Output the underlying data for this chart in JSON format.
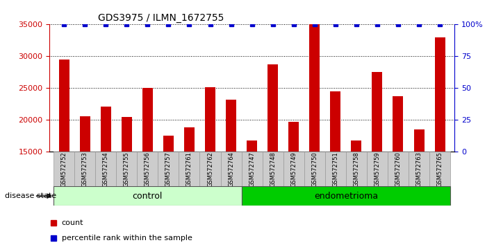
{
  "title": "GDS3975 / ILMN_1672755",
  "samples": [
    "GSM572752",
    "GSM572753",
    "GSM572754",
    "GSM572755",
    "GSM572756",
    "GSM572757",
    "GSM572761",
    "GSM572762",
    "GSM572764",
    "GSM572747",
    "GSM572748",
    "GSM572749",
    "GSM572750",
    "GSM572751",
    "GSM572758",
    "GSM572759",
    "GSM572760",
    "GSM572763",
    "GSM572765"
  ],
  "counts": [
    29500,
    20600,
    22100,
    20500,
    25000,
    17600,
    18900,
    25200,
    23200,
    16800,
    28700,
    19700,
    35000,
    24500,
    16800,
    27500,
    23700,
    18500,
    33000
  ],
  "percentile_ranks": [
    100,
    100,
    100,
    100,
    100,
    100,
    100,
    100,
    100,
    100,
    100,
    100,
    100,
    100,
    100,
    100,
    100,
    100,
    100
  ],
  "bar_color": "#CC0000",
  "percentile_color": "#0000CC",
  "ylim_left": [
    15000,
    35000
  ],
  "ylim_right": [
    0,
    100
  ],
  "yticks_left": [
    15000,
    20000,
    25000,
    30000,
    35000
  ],
  "yticks_right": [
    0,
    25,
    50,
    75,
    100
  ],
  "ytick_labels_right": [
    "0",
    "25",
    "50",
    "75",
    "100%"
  ],
  "grid_color": "#000000",
  "control_count": 9,
  "endometrioma_count": 10,
  "control_label": "control",
  "endometrioma_label": "endometrioma",
  "disease_state_label": "disease state",
  "legend_count_label": "count",
  "legend_percentile_label": "percentile rank within the sample",
  "bg_color": "#FFFFFF",
  "tick_label_color_left": "#CC0000",
  "tick_label_color_right": "#0000CC",
  "control_bg": "#CCFFCC",
  "endometrioma_bg": "#00CC00",
  "sample_bg": "#CCCCCC"
}
